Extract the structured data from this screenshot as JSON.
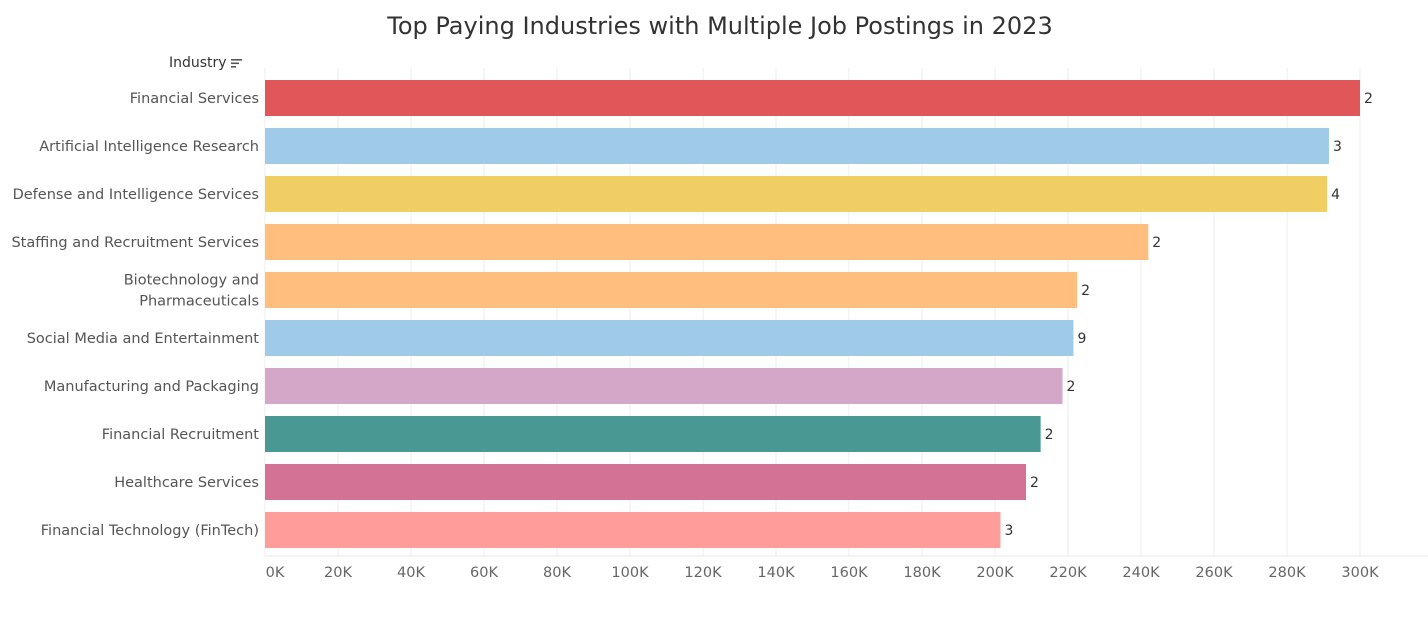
{
  "chart_data": {
    "type": "bar",
    "orientation": "horizontal",
    "title": "Top Paying Industries with Multiple Job Postings in 2023",
    "row_header": "Industry",
    "categories": [
      [
        "Financial Services"
      ],
      [
        "Artificial Intelligence Research"
      ],
      [
        "Defense and Intelligence Services"
      ],
      [
        "Staffing and Recruitment Services"
      ],
      [
        "Biotechnology and",
        "Pharmaceuticals"
      ],
      [
        "Social Media and Entertainment"
      ],
      [
        "Manufacturing and Packaging"
      ],
      [
        "Financial Recruitment"
      ],
      [
        "Healthcare Services"
      ],
      [
        "Financial Technology (FinTech)"
      ]
    ],
    "values": [
      300000,
      291500,
      291000,
      242000,
      222500,
      221500,
      218500,
      212500,
      208500,
      201500
    ],
    "data_labels": [
      "2",
      "3",
      "4",
      "2",
      "2",
      "9",
      "2",
      "2",
      "2",
      "3"
    ],
    "colors": [
      "#e15759",
      "#a0cbe8",
      "#f1ce63",
      "#ffbe7d",
      "#ffbe7d",
      "#a0cbe8",
      "#d4a6c8",
      "#499894",
      "#d37295",
      "#ff9d9a"
    ],
    "xlim": [
      0,
      300000
    ],
    "xticks": [
      0,
      20000,
      40000,
      60000,
      80000,
      100000,
      120000,
      140000,
      160000,
      180000,
      200000,
      220000,
      240000,
      260000,
      280000,
      300000
    ],
    "xtick_labels": [
      "0K",
      "20K",
      "40K",
      "60K",
      "80K",
      "100K",
      "120K",
      "140K",
      "160K",
      "180K",
      "200K",
      "220K",
      "240K",
      "260K",
      "280K",
      "300K"
    ],
    "grid": true,
    "legend": "none",
    "sort_icon": "sort-descending-icon"
  }
}
